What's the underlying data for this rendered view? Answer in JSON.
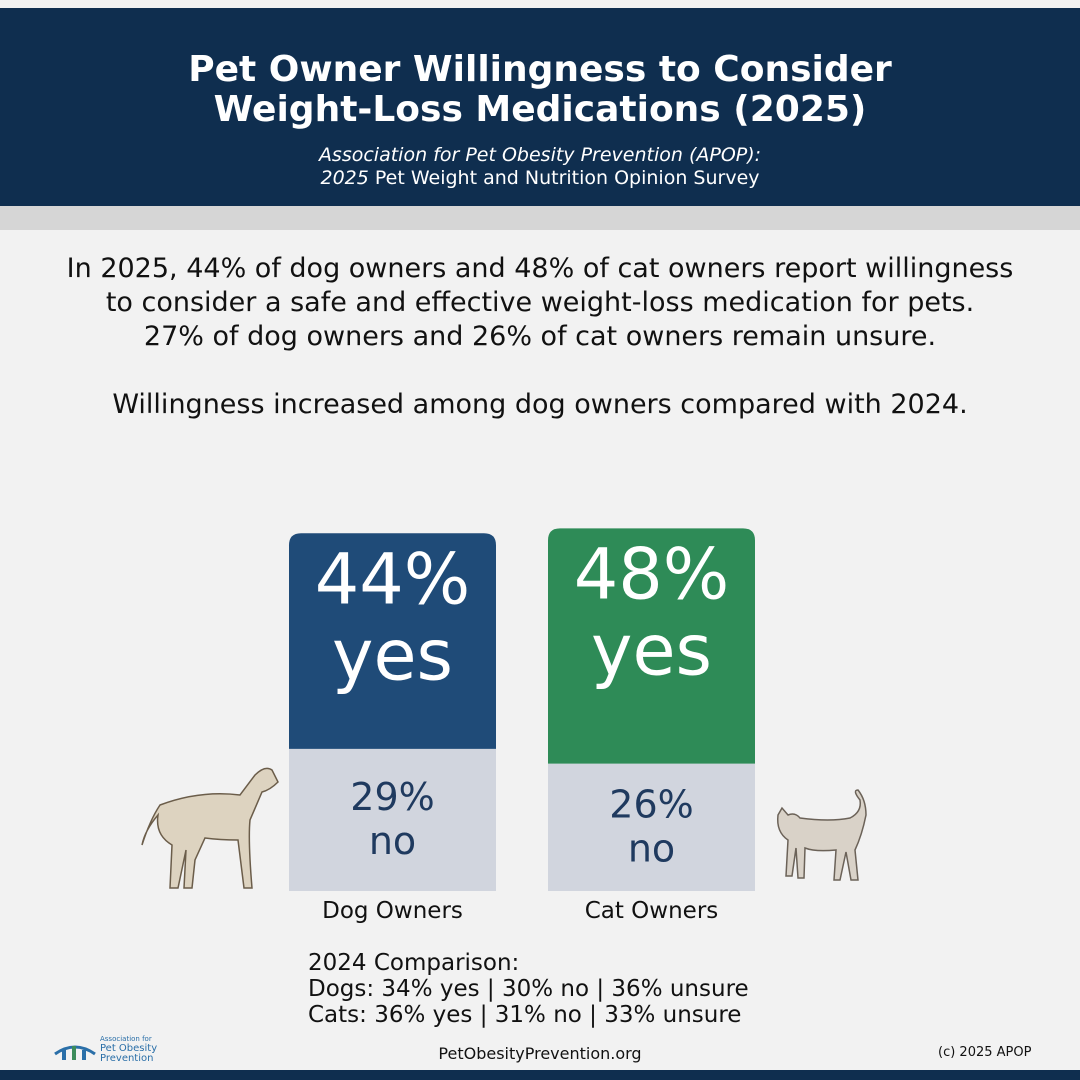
{
  "header": {
    "title": "Pet Owner Willingness to Consider Weight-Loss Medications (2025)",
    "source_line1": "Association for Pet Obesity Prevention (APOP):",
    "source_year": "2025",
    "source_line2": "Pet Weight and Nutrition Opinion Survey"
  },
  "summary": [
    "In 2025, 44% of dog owners and 48% of cat owners report willingness to consider a safe and effective weight-loss medication for pets.",
    "27% of dog owners and 26% of cat owners remain unsure.",
    "Willingness increased among dog owners compared with 2024."
  ],
  "chart_data": {
    "type": "stacked-bar",
    "categories": [
      "Dog Owners",
      "Cat Owners"
    ],
    "series": [
      {
        "name": "yes",
        "colors": [
          "#1f4b78",
          "#2e8b57"
        ],
        "text_color": "#ffffff",
        "values": [
          44,
          48
        ],
        "value_labels": [
          "44%",
          "48%"
        ]
      },
      {
        "name": "no",
        "color": "#d1d5de",
        "text_color": "#1f3a5f",
        "values": [
          29,
          26
        ],
        "value_labels": [
          "29%",
          "26%"
        ]
      }
    ]
  },
  "comparison": {
    "title": "2024 Comparison:",
    "lines": [
      "Dogs: 34% yes | 30% no | 36% unsure",
      "Cats: 36% yes | 31% no | 33% unsure"
    ]
  },
  "footer": {
    "logo": [
      "Association for",
      "Pet Obesity",
      "Prevention"
    ],
    "website": "PetObesityPrevention.org",
    "copyright": "(c) 2025 APOP"
  }
}
